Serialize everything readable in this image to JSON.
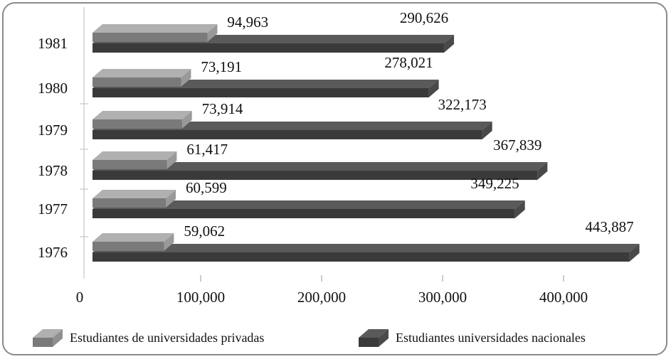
{
  "chart_data": {
    "type": "bar",
    "orientation": "horizontal",
    "categories": [
      "1976",
      "1977",
      "1978",
      "1979",
      "1980",
      "1981"
    ],
    "series": [
      {
        "name": "Estudiantes de universidades privadas",
        "values": [
          59062,
          60599,
          61417,
          73914,
          73191,
          94963
        ],
        "color": "#7a7a7a",
        "top_color": "#b0b0b0"
      },
      {
        "name": "Estudiantes universidades nacionales",
        "values": [
          443887,
          349225,
          367839,
          322173,
          278021,
          290626
        ],
        "color": "#3a3a3a",
        "top_color": "#5a5a5a"
      }
    ],
    "data_labels": {
      "privadas": [
        "59,062",
        "60,599",
        "61,417",
        "73,914",
        "73,191",
        "94,963"
      ],
      "nacionales": [
        "443,887",
        "349,225",
        "367,839",
        "322,173",
        "278,021",
        "290,626"
      ]
    },
    "x_ticks": [
      0,
      100000,
      200000,
      300000,
      400000
    ],
    "x_tick_labels": [
      "0",
      "100,000",
      "200,000",
      "300,000",
      "400,000"
    ],
    "xlim": [
      0,
      450000
    ],
    "title": "",
    "xlabel": "",
    "ylabel": "",
    "legend_position": "bottom",
    "three_d": true
  }
}
